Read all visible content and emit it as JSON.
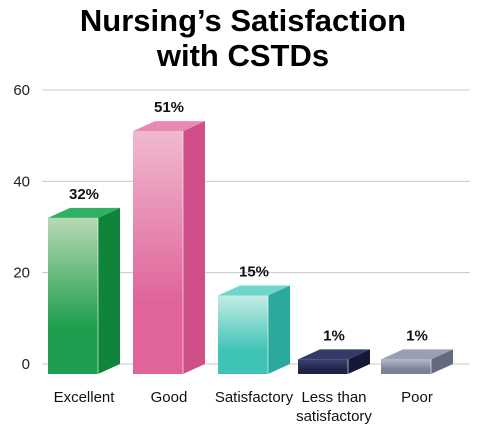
{
  "chart_data": {
    "type": "bar",
    "title_lines": [
      "Nursing’s Satisfaction",
      "with CSTDs"
    ],
    "categories": [
      [
        "Excellent"
      ],
      [
        "Good"
      ],
      [
        "Satisfactory"
      ],
      [
        "Less than",
        "satisfactory"
      ],
      [
        "Poor"
      ]
    ],
    "values": [
      32,
      51,
      15,
      1,
      1
    ],
    "data_labels": [
      "32%",
      "51%",
      "15%",
      "1%",
      "1%"
    ],
    "ylim": [
      0,
      60
    ],
    "yticks": [
      "0",
      "20",
      "40",
      "60"
    ],
    "grid": true,
    "bar_style": "3d",
    "colors": [
      {
        "front_light": "#b9d8b4",
        "front_dark": "#1e9e4e",
        "side": "#11843c",
        "top": "#2fb062"
      },
      {
        "front_light": "#f0b9cf",
        "front_dark": "#e0649a",
        "side": "#cf4f88",
        "top": "#e98ab3"
      },
      {
        "front_light": "#c4ece6",
        "front_dark": "#3fc3b5",
        "side": "#2aa99c",
        "top": "#6fd6cb"
      },
      {
        "front_light": "#3a4270",
        "front_dark": "#1e2348",
        "side": "#14183a",
        "top": "#333b68"
      },
      {
        "front_light": "#b4b9c9",
        "front_dark": "#7b8197",
        "side": "#636a80",
        "top": "#9aa0b3"
      }
    ]
  }
}
